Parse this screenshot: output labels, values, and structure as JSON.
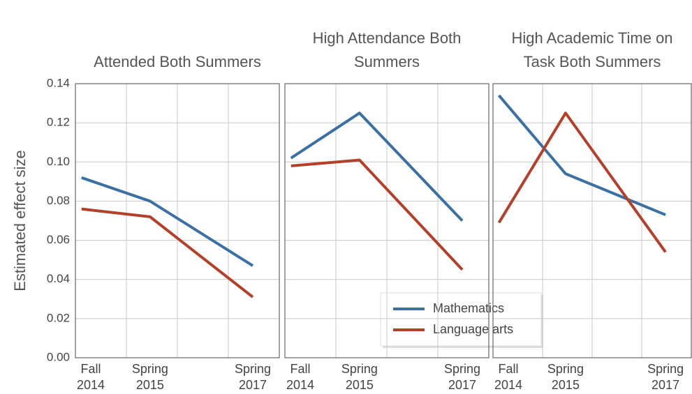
{
  "chart_data": [
    {
      "type": "line",
      "title": "Attended Both Summers",
      "ylabel": "Estimated effect size",
      "categories": [
        "Fall 2014",
        "Spring 2015",
        "Spring 2017"
      ],
      "series": [
        {
          "name": "Mathematics",
          "color": "#3a70a4",
          "values": [
            0.092,
            0.08,
            0.047
          ]
        },
        {
          "name": "Language arts",
          "color": "#b5402a",
          "values": [
            0.076,
            0.072,
            0.031
          ]
        }
      ],
      "ylim": [
        0,
        0.14
      ],
      "yticks": [
        {
          "value": 0,
          "label": "0.00"
        },
        0.02,
        0.04,
        0.06,
        0.08,
        {
          "value": 0.1,
          "label": "0.10"
        },
        0.12,
        0.14
      ],
      "grid": true,
      "legend": "lower right"
    },
    {
      "type": "line",
      "title": "High Attendance Both Summers",
      "categories": [
        "Fall 2014",
        "Spring 2015",
        "Spring 2017"
      ],
      "series": [
        {
          "color": "#3a70a4",
          "values": [
            0.102,
            0.125,
            0.07
          ]
        },
        {
          "color": "#b5402a",
          "values": [
            0.098,
            0.101,
            0.045
          ]
        }
      ],
      "ylim": [
        0,
        0.14
      ],
      "yticks": [
        {
          "value": 0,
          "label": "0.00"
        },
        0.02,
        0.04,
        0.06,
        0.08,
        {
          "value": 0.1,
          "label": "0.10"
        },
        0.12,
        0.14
      ],
      "grid": true
    },
    {
      "type": "line",
      "title": "High Academic Time on Task Both Summers",
      "categories": [
        "Fall 2014",
        "Spring 2015",
        "Spring 2017"
      ],
      "series": [
        {
          "color": "#3a70a4",
          "values": [
            0.134,
            0.094,
            0.073
          ]
        },
        {
          "color": "#b5402a",
          "values": [
            0.069,
            0.125,
            0.054
          ]
        }
      ],
      "ylim": [
        0,
        0.14
      ],
      "yticks": [
        {
          "value": 0,
          "label": "0.00"
        },
        0.02,
        0.04,
        0.06,
        0.08,
        {
          "value": 0.1,
          "label": "0.10"
        },
        0.12,
        0.14
      ],
      "grid": true
    }
  ]
}
